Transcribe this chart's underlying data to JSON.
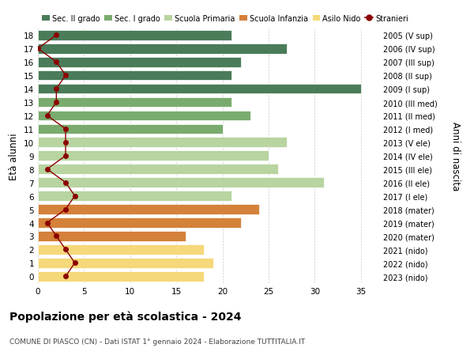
{
  "ages": [
    18,
    17,
    16,
    15,
    14,
    13,
    12,
    11,
    10,
    9,
    8,
    7,
    6,
    5,
    4,
    3,
    2,
    1,
    0
  ],
  "bar_values": [
    21,
    27,
    22,
    21,
    35,
    21,
    23,
    20,
    27,
    25,
    26,
    31,
    21,
    24,
    22,
    16,
    18,
    19,
    18
  ],
  "bar_colors": [
    "#4a7c59",
    "#4a7c59",
    "#4a7c59",
    "#4a7c59",
    "#4a7c59",
    "#7aab6e",
    "#7aab6e",
    "#7aab6e",
    "#b8d4a0",
    "#b8d4a0",
    "#b8d4a0",
    "#b8d4a0",
    "#b8d4a0",
    "#d4813a",
    "#d4813a",
    "#d4813a",
    "#f5d87a",
    "#f5d87a",
    "#f5d87a"
  ],
  "stranieri_values": [
    2,
    0,
    2,
    3,
    2,
    2,
    1,
    3,
    3,
    3,
    1,
    3,
    4,
    3,
    1,
    2,
    3,
    4,
    3
  ],
  "right_labels": [
    "2005 (V sup)",
    "2006 (IV sup)",
    "2007 (III sup)",
    "2008 (II sup)",
    "2009 (I sup)",
    "2010 (III med)",
    "2011 (II med)",
    "2012 (I med)",
    "2013 (V ele)",
    "2014 (IV ele)",
    "2015 (III ele)",
    "2016 (II ele)",
    "2017 (I ele)",
    "2018 (mater)",
    "2019 (mater)",
    "2020 (mater)",
    "2021 (nido)",
    "2022 (nido)",
    "2023 (nido)"
  ],
  "ylabel_left": "Età alunni",
  "ylabel_right": "Anni di nascita",
  "xlim": [
    0,
    37
  ],
  "xticks": [
    0,
    5,
    10,
    15,
    20,
    25,
    30,
    35
  ],
  "title_main": "Popolazione per età scolastica - 2024",
  "title_sub": "COMUNE DI PIASCO (CN) - Dati ISTAT 1° gennaio 2024 - Elaborazione TUTTITALIA.IT",
  "legend_labels": [
    "Sec. II grado",
    "Sec. I grado",
    "Scuola Primaria",
    "Scuola Infanzia",
    "Asilo Nido",
    "Stranieri"
  ],
  "legend_colors": [
    "#4a7c59",
    "#7aab6e",
    "#b8d4a0",
    "#d4813a",
    "#f5d87a",
    "#8b0000"
  ],
  "color_stranieri": "#8b0000",
  "background_color": "#ffffff",
  "grid_color": "#cccccc"
}
